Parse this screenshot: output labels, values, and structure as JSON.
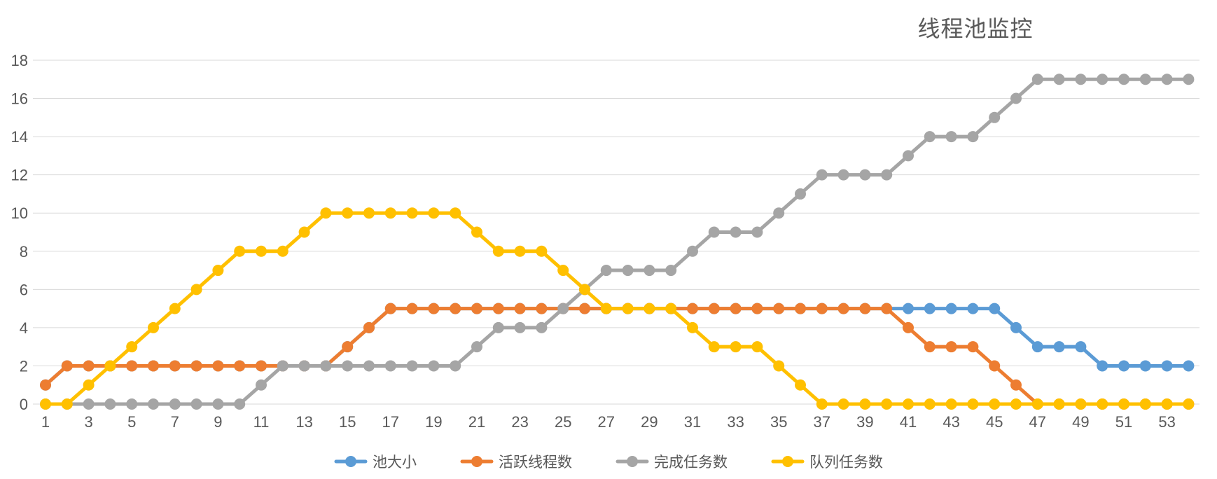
{
  "title": "线程池监控",
  "colors": {
    "background": "#FFFFFF",
    "grid": "#D9D9D9",
    "axis_label": "#595959",
    "title_text": "#595959",
    "legend_label": "#595959"
  },
  "legend": {
    "position": "bottom-center"
  },
  "chart_data": {
    "type": "line",
    "title": "线程池监控",
    "x": [
      1,
      2,
      3,
      4,
      5,
      6,
      7,
      8,
      9,
      10,
      11,
      12,
      13,
      14,
      15,
      16,
      17,
      18,
      19,
      20,
      21,
      22,
      23,
      24,
      25,
      26,
      27,
      28,
      29,
      30,
      31,
      32,
      33,
      34,
      35,
      36,
      37,
      38,
      39,
      40,
      41,
      42,
      43,
      44,
      45,
      46,
      47,
      48,
      49,
      50,
      51,
      52,
      53,
      54
    ],
    "x_tick_labels": [
      "1",
      "3",
      "5",
      "7",
      "9",
      "11",
      "13",
      "15",
      "17",
      "19",
      "21",
      "23",
      "25",
      "27",
      "29",
      "31",
      "33",
      "35",
      "37",
      "39",
      "41",
      "43",
      "45",
      "47",
      "49",
      "51",
      "53"
    ],
    "y_ticks": [
      0,
      2,
      4,
      6,
      8,
      10,
      12,
      14,
      16,
      18
    ],
    "ylim": [
      0,
      18
    ],
    "grid": true,
    "legend_position": "bottom",
    "series": [
      {
        "key": "pool-size",
        "name": "池大小",
        "color": "#5B9BD5",
        "values": [
          1,
          2,
          2,
          2,
          2,
          2,
          2,
          2,
          2,
          2,
          2,
          2,
          2,
          2,
          3,
          4,
          5,
          5,
          5,
          5,
          5,
          5,
          5,
          5,
          5,
          5,
          5,
          5,
          5,
          5,
          5,
          5,
          5,
          5,
          5,
          5,
          5,
          5,
          5,
          5,
          5,
          5,
          5,
          5,
          5,
          4,
          3,
          3,
          3,
          2,
          2,
          2,
          2,
          2
        ]
      },
      {
        "key": "active-threads",
        "name": "活跃线程数",
        "color": "#ED7D31",
        "values": [
          1,
          2,
          2,
          2,
          2,
          2,
          2,
          2,
          2,
          2,
          2,
          2,
          2,
          2,
          3,
          4,
          5,
          5,
          5,
          5,
          5,
          5,
          5,
          5,
          5,
          5,
          5,
          5,
          5,
          5,
          5,
          5,
          5,
          5,
          5,
          5,
          5,
          5,
          5,
          5,
          4,
          3,
          3,
          3,
          2,
          1,
          0,
          0,
          0,
          0,
          0,
          0,
          0,
          0
        ]
      },
      {
        "key": "completed-tasks",
        "name": "完成任务数",
        "color": "#A5A5A5",
        "values": [
          0,
          0,
          0,
          0,
          0,
          0,
          0,
          0,
          0,
          0,
          1,
          2,
          2,
          2,
          2,
          2,
          2,
          2,
          2,
          2,
          3,
          4,
          4,
          4,
          5,
          6,
          7,
          7,
          7,
          7,
          8,
          9,
          9,
          9,
          10,
          11,
          12,
          12,
          12,
          12,
          13,
          14,
          14,
          14,
          15,
          16,
          17,
          17,
          17,
          17,
          17,
          17,
          17,
          17
        ]
      },
      {
        "key": "queued-tasks",
        "name": "队列任务数",
        "color": "#FFC000",
        "values": [
          0,
          0,
          1,
          2,
          3,
          4,
          5,
          6,
          7,
          8,
          8,
          8,
          9,
          10,
          10,
          10,
          10,
          10,
          10,
          10,
          9,
          8,
          8,
          8,
          7,
          6,
          5,
          5,
          5,
          5,
          4,
          3,
          3,
          3,
          2,
          1,
          0,
          0,
          0,
          0,
          0,
          0,
          0,
          0,
          0,
          0,
          0,
          0,
          0,
          0,
          0,
          0,
          0,
          0
        ]
      }
    ]
  }
}
